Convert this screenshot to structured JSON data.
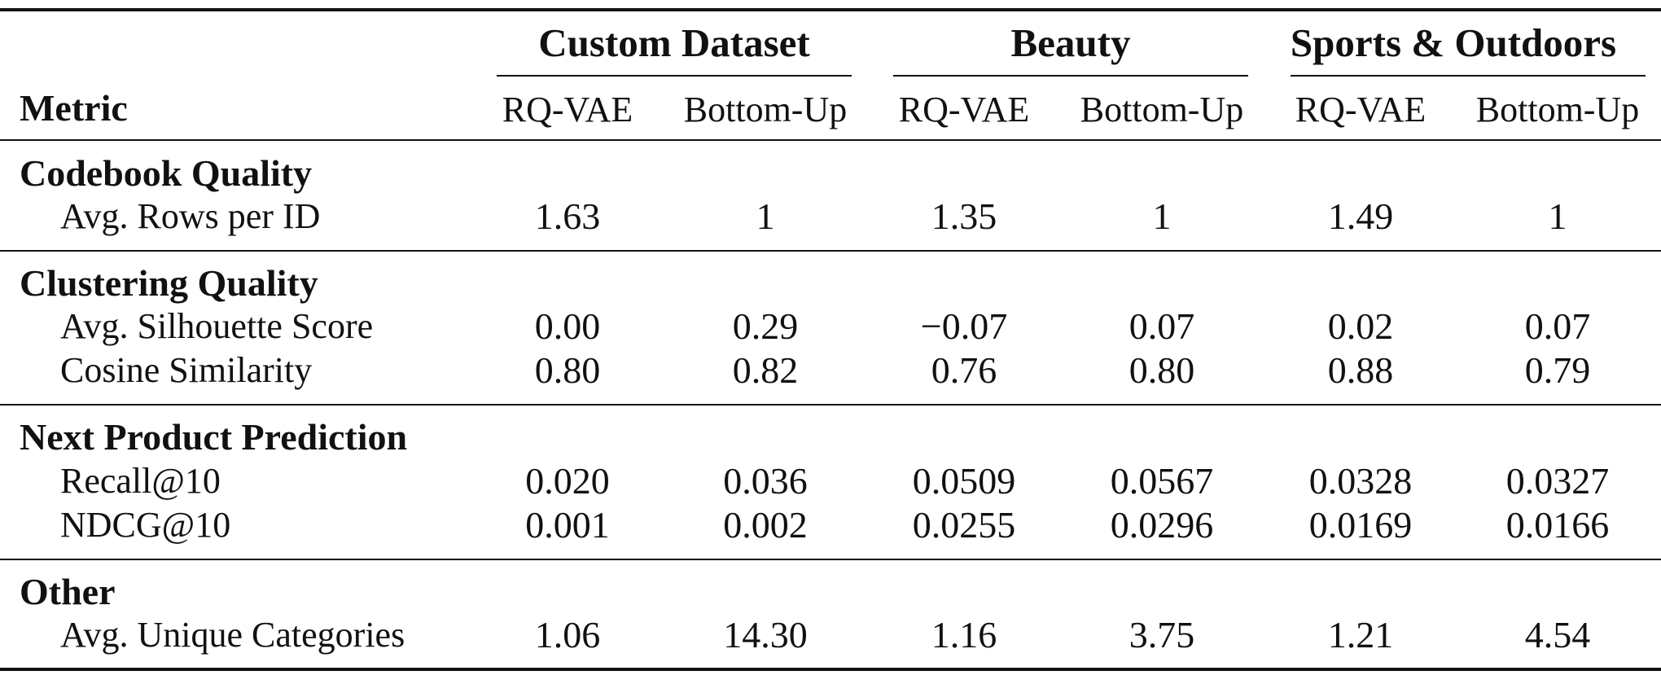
{
  "header": {
    "metric_label": "Metric",
    "groups": [
      {
        "name": "Custom Dataset"
      },
      {
        "name": "Beauty"
      },
      {
        "name": "Sports & Outdoors"
      }
    ],
    "subcolumns": [
      "RQ-VAE",
      "Bottom-Up",
      "RQ-VAE",
      "Bottom-Up",
      "RQ-VAE",
      "Bottom-Up"
    ]
  },
  "sections": [
    {
      "title": "Codebook Quality",
      "rows": [
        {
          "label": "Avg. Rows per ID",
          "values": [
            "1.63",
            "1",
            "1.35",
            "1",
            "1.49",
            "1"
          ]
        }
      ]
    },
    {
      "title": "Clustering Quality",
      "rows": [
        {
          "label": "Avg. Silhouette Score",
          "values": [
            "0.00",
            "0.29",
            "−0.07",
            "0.07",
            "0.02",
            "0.07"
          ]
        },
        {
          "label": "Cosine Similarity",
          "values": [
            "0.80",
            "0.82",
            "0.76",
            "0.80",
            "0.88",
            "0.79"
          ]
        }
      ]
    },
    {
      "title": "Next Product Prediction",
      "rows": [
        {
          "label": "Recall@10",
          "values": [
            "0.020",
            "0.036",
            "0.0509",
            "0.0567",
            "0.0328",
            "0.0327"
          ]
        },
        {
          "label": "NDCG@10",
          "values": [
            "0.001",
            "0.002",
            "0.0255",
            "0.0296",
            "0.0169",
            "0.0166"
          ]
        }
      ]
    },
    {
      "title": "Other",
      "rows": [
        {
          "label": "Avg. Unique Categories",
          "values": [
            "1.06",
            "14.30",
            "1.16",
            "3.75",
            "1.21",
            "4.54"
          ]
        }
      ]
    }
  ]
}
